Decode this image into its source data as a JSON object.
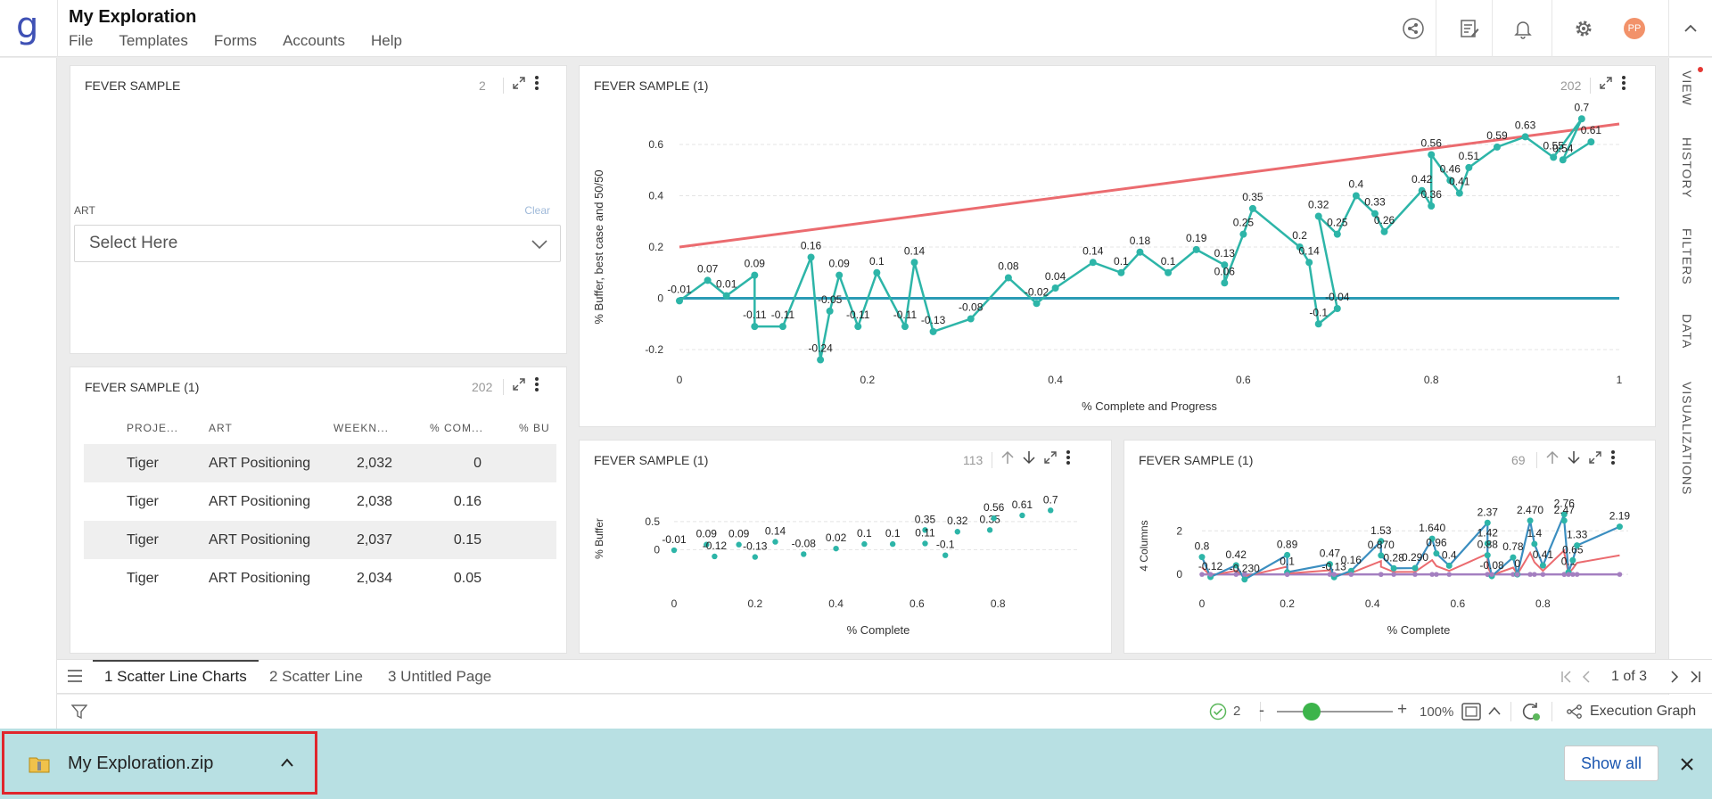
{
  "app": {
    "title": "My Exploration",
    "menu": [
      "File",
      "Templates",
      "Forms",
      "Accounts",
      "Help"
    ],
    "avatar_initials": "PP"
  },
  "right_tabs": [
    "VIEW",
    "HISTORY",
    "FILTERS",
    "DATA",
    "VISUALIZATIONS"
  ],
  "filter_panel": {
    "title": "FEVER SAMPLE",
    "count": "2",
    "field_label": "ART",
    "clear_label": "Clear",
    "select_placeholder": "Select Here"
  },
  "table_panel": {
    "title": "FEVER SAMPLE (1)",
    "count": "202",
    "columns": [
      "PROJE...",
      "ART",
      "WEEKN...",
      "% COM...",
      "% BU"
    ],
    "rows": [
      [
        "Tiger",
        "ART Positioning",
        "2,032",
        "0",
        ""
      ],
      [
        "Tiger",
        "ART Positioning",
        "2,038",
        "0.16",
        ""
      ],
      [
        "Tiger",
        "ART Positioning",
        "2,037",
        "0.15",
        ""
      ],
      [
        "Tiger",
        "ART Positioning",
        "2,034",
        "0.05",
        ""
      ]
    ]
  },
  "main_chart_panel": {
    "title": "FEVER SAMPLE (1)",
    "count": "202"
  },
  "small_chart1_panel": {
    "title": "FEVER SAMPLE (1)",
    "count": "113"
  },
  "small_chart2_panel": {
    "title": "FEVER SAMPLE (1)",
    "count": "69"
  },
  "page_tabs": [
    "1 Scatter Line Charts",
    "2 Scatter Line",
    "3 Untitled Page"
  ],
  "pager": {
    "label": "1 of 3"
  },
  "status": {
    "check_count": "2",
    "zoom_minus": "-",
    "zoom_plus": "+",
    "zoom_level": "100%",
    "zoom_fraction": 0.3,
    "execution_graph": "Execution Graph"
  },
  "download": {
    "file_name": "My Exploration.zip",
    "show_all": "Show all"
  },
  "colors": {
    "teal": "#2db5a8",
    "red": "#eb6b6f",
    "purple": "#a47fc0",
    "blue": "#3b8ec0",
    "baseline": "#2a9bb5",
    "logo": "#3f51b5",
    "avatar": "#f2926a"
  },
  "chart_data": [
    {
      "type": "line",
      "xlabel": "% Complete and Progress",
      "ylabel": "% Buffer, best case and 50/50",
      "xlim": [
        0,
        1
      ],
      "ylim": [
        -0.2,
        0.6
      ],
      "x_ticks": [
        "0",
        "0.2",
        "0.4",
        "0.6",
        "0.8",
        "1"
      ],
      "y_ticks": [
        "-0.2",
        "0",
        "0.2",
        "0.4",
        "0.6"
      ],
      "grid": true,
      "series": [
        {
          "type": "line",
          "points": [
            [
              0,
              -0.01
            ],
            [
              0.03,
              0.07
            ],
            [
              0.05,
              0.01
            ],
            [
              0.08,
              0.09
            ],
            [
              0.08,
              -0.11
            ],
            [
              0.11,
              -0.11
            ],
            [
              0.14,
              0.16
            ],
            [
              0.15,
              -0.24
            ],
            [
              0.16,
              -0.05
            ],
            [
              0.17,
              0.09
            ],
            [
              0.19,
              -0.11
            ],
            [
              0.21,
              0.1
            ],
            [
              0.24,
              -0.11
            ],
            [
              0.25,
              0.14
            ],
            [
              0.27,
              -0.13
            ],
            [
              0.31,
              -0.08
            ],
            [
              0.35,
              0.08
            ],
            [
              0.38,
              -0.02
            ],
            [
              0.4,
              0.04
            ],
            [
              0.44,
              0.14
            ],
            [
              0.47,
              0.1
            ],
            [
              0.49,
              0.18
            ],
            [
              0.52,
              0.1
            ],
            [
              0.55,
              0.19
            ],
            [
              0.58,
              0.13
            ],
            [
              0.58,
              0.06
            ],
            [
              0.6,
              0.25
            ],
            [
              0.61,
              0.35
            ],
            [
              0.66,
              0.2
            ],
            [
              0.67,
              0.14
            ],
            [
              0.68,
              -0.1
            ],
            [
              0.7,
              -0.04
            ],
            [
              0.68,
              0.32
            ],
            [
              0.7,
              0.25
            ],
            [
              0.72,
              0.4
            ],
            [
              0.74,
              0.33
            ],
            [
              0.75,
              0.26
            ],
            [
              0.79,
              0.42
            ],
            [
              0.8,
              0.36
            ],
            [
              0.8,
              0.56
            ],
            [
              0.82,
              0.46
            ],
            [
              0.83,
              0.41
            ],
            [
              0.84,
              0.51
            ],
            [
              0.87,
              0.59
            ],
            [
              0.9,
              0.63
            ],
            [
              0.93,
              0.55
            ],
            [
              0.96,
              0.7
            ],
            [
              0.94,
              0.54
            ],
            [
              0.97,
              0.61
            ]
          ]
        },
        {
          "type": "line",
          "points": [
            [
              0,
              0.2
            ],
            [
              1,
              0.68
            ]
          ]
        },
        {
          "type": "line",
          "points": [
            [
              0,
              0
            ],
            [
              1,
              0
            ]
          ]
        }
      ]
    },
    {
      "type": "scatter",
      "xlabel": "% Complete",
      "ylabel": "% Buffer",
      "x_ticks": [
        "0",
        "0.2",
        "0.4",
        "0.6",
        "0.8"
      ],
      "y_ticks": [
        "0",
        "0.5"
      ],
      "ylim": [
        -0.2,
        0.8
      ],
      "labels": [
        [
          0,
          -0.01,
          "-0.01"
        ],
        [
          0.08,
          0.09,
          "0.09"
        ],
        [
          0.1,
          -0.12,
          "-0.12"
        ],
        [
          0.16,
          0.09,
          "0.09"
        ],
        [
          0.2,
          -0.13,
          "-0.13"
        ],
        [
          0.25,
          0.14,
          "0.14"
        ],
        [
          0.32,
          -0.08,
          "-0.08"
        ],
        [
          0.4,
          0.02,
          "0.02"
        ],
        [
          0.47,
          0.1,
          "0.1"
        ],
        [
          0.54,
          0.1,
          "0.1"
        ],
        [
          0.62,
          0.35,
          "0.35"
        ],
        [
          0.62,
          0.11,
          "0.11"
        ],
        [
          0.67,
          -0.1,
          "-0.1"
        ],
        [
          0.7,
          0.32,
          "0.32"
        ],
        [
          0.78,
          0.35,
          "0.35"
        ],
        [
          0.79,
          0.56,
          "0.56"
        ],
        [
          0.86,
          0.61,
          "0.61"
        ],
        [
          0.93,
          0.7,
          "0.7"
        ]
      ]
    },
    {
      "type": "line",
      "xlabel": "% Complete",
      "ylabel": "4 Columns",
      "x_ticks": [
        "0",
        "0.2",
        "0.4",
        "0.6",
        "0.8"
      ],
      "y_ticks": [
        "0",
        "2"
      ],
      "ylim": [
        -0.2,
        3.2
      ],
      "labels": [
        [
          0,
          0.8,
          "0.8"
        ],
        [
          0.02,
          -0.12,
          "-0.12"
        ],
        [
          0.08,
          0.42,
          "0.42"
        ],
        [
          0.1,
          -0.23,
          "-0.230"
        ],
        [
          0.2,
          0.89,
          "0.89"
        ],
        [
          0.2,
          0.1,
          "0.1"
        ],
        [
          0.3,
          0.47,
          "0.47"
        ],
        [
          0.31,
          -0.13,
          "-0.13"
        ],
        [
          0.35,
          0.16,
          "0.16"
        ],
        [
          0.42,
          1.53,
          "1.53"
        ],
        [
          0.42,
          0.87,
          "0.870"
        ],
        [
          0.45,
          0.28,
          "0.28"
        ],
        [
          0.5,
          0.29,
          "0.290"
        ],
        [
          0.54,
          1.64,
          "1.640"
        ],
        [
          0.55,
          0.96,
          "0.96"
        ],
        [
          0.58,
          0.4,
          "0.4"
        ],
        [
          0.67,
          2.37,
          "2.37"
        ],
        [
          0.67,
          1.42,
          "1.42"
        ],
        [
          0.67,
          0.88,
          "0.88"
        ],
        [
          0.68,
          -0.08,
          "-0.08"
        ],
        [
          0.73,
          0.78,
          "0.78"
        ],
        [
          0.74,
          0,
          "0"
        ],
        [
          0.77,
          2.47,
          "2.470"
        ],
        [
          0.78,
          1.4,
          "1.4"
        ],
        [
          0.8,
          0.41,
          "0.41"
        ],
        [
          0.85,
          2.76,
          "2.76"
        ],
        [
          0.85,
          2.47,
          "2.47"
        ],
        [
          0.88,
          1.33,
          "1.33"
        ],
        [
          0.87,
          0.65,
          "0.65"
        ],
        [
          0.86,
          0.1,
          "0.1"
        ],
        [
          0.98,
          2.19,
          "2.19"
        ]
      ]
    }
  ]
}
